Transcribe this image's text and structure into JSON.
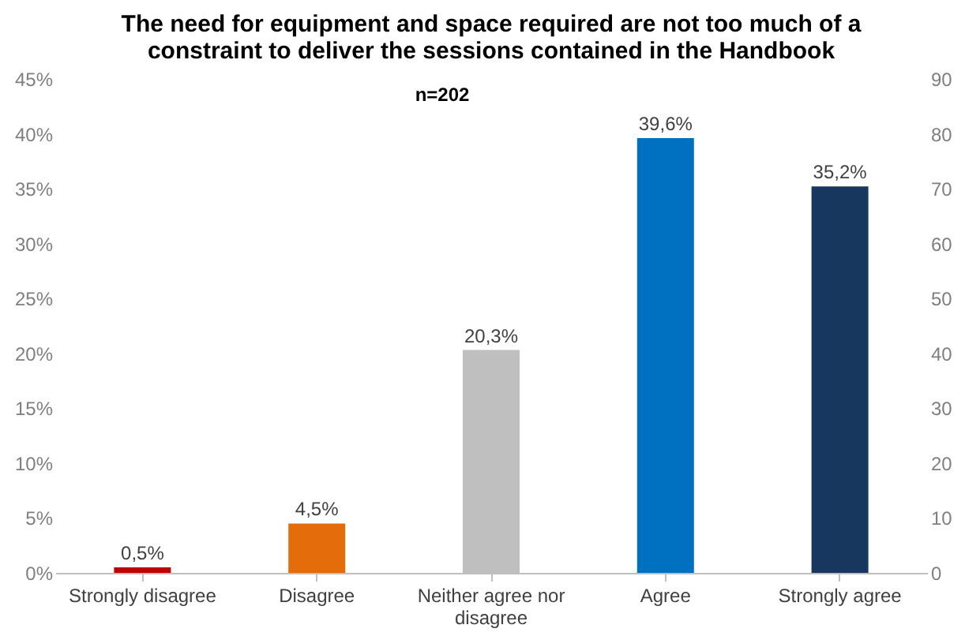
{
  "chart_data": {
    "type": "bar",
    "title": "The need for equipment and space required are not too much of a constraint to deliver the sessions contained in the Handbook",
    "annotations": [
      "n=202"
    ],
    "categories": [
      "Strongly disagree",
      "Disagree",
      "Neither agree nor disagree",
      "Agree",
      "Strongly agree"
    ],
    "values": [
      0.5,
      4.5,
      20.3,
      39.6,
      35.2
    ],
    "value_labels": [
      "0,5%",
      "4,5%",
      "20,3%",
      "39,6%",
      "35,2%"
    ],
    "colors": [
      "#c00000",
      "#e46c0a",
      "#bfbfbf",
      "#0070c0",
      "#17375e"
    ],
    "ylim": [
      0,
      45
    ],
    "yticks": [
      {
        "value": 0,
        "label": "0%"
      },
      {
        "value": 5,
        "label": "5%"
      },
      {
        "value": 10,
        "label": "10%"
      },
      {
        "value": 15,
        "label": "15%"
      },
      {
        "value": 20,
        "label": "20%"
      },
      {
        "value": 25,
        "label": "25%"
      },
      {
        "value": 30,
        "label": "30%"
      },
      {
        "value": 35,
        "label": "35%"
      },
      {
        "value": 40,
        "label": "40%"
      },
      {
        "value": 45,
        "label": "45%"
      }
    ],
    "y2lim": [
      0,
      90
    ],
    "y2ticks": [
      0,
      10,
      20,
      30,
      40,
      50,
      60,
      70,
      80,
      90
    ],
    "grid": false
  }
}
